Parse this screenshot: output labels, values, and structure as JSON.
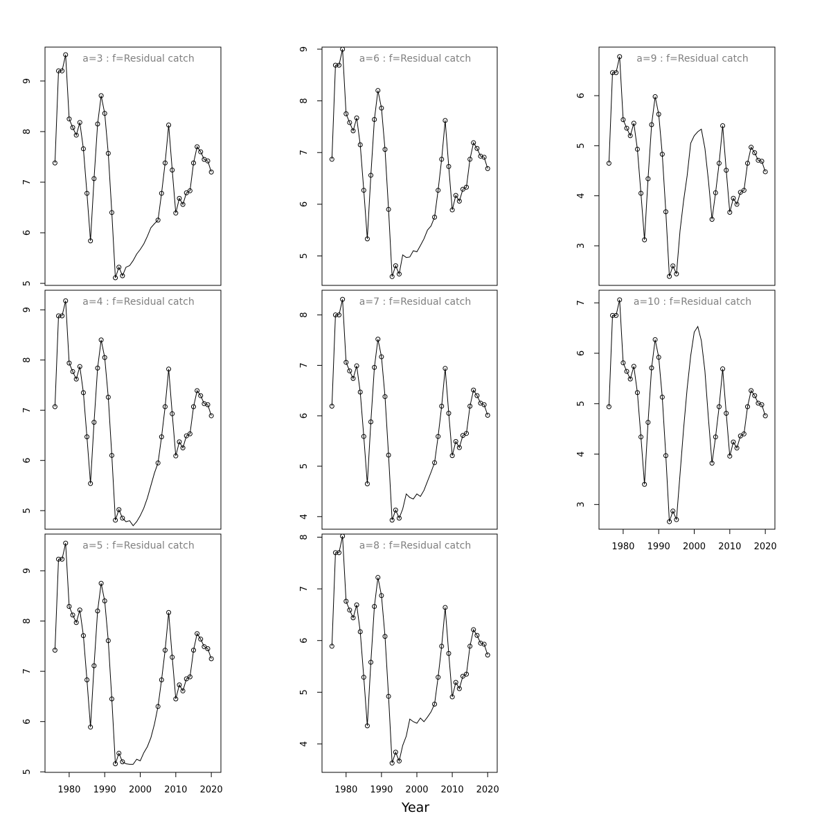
{
  "xlabel": "Year",
  "chart_data": [
    {
      "type": "line",
      "title": "a=3  :  f=Residual catch",
      "x": [
        1976,
        1977,
        1978,
        1979,
        1980,
        1981,
        1982,
        1983,
        1984,
        1985,
        1986,
        1987,
        1988,
        1989,
        1990,
        1991,
        1992,
        1993,
        1994,
        1995,
        1996,
        1997,
        1998,
        1999,
        2000,
        2001,
        2002,
        2003,
        2004,
        2005,
        2006,
        2007,
        2008,
        2009,
        2010,
        2011,
        2012,
        2013,
        2014,
        2015,
        2016,
        2017,
        2018,
        2019,
        2020
      ],
      "values": [
        7.38,
        9.2,
        9.2,
        9.52,
        8.25,
        8.08,
        7.93,
        8.18,
        7.66,
        6.78,
        5.84,
        7.07,
        8.15,
        8.71,
        8.36,
        7.57,
        6.4,
        5.11,
        5.32,
        5.15,
        5.32,
        5.35,
        5.45,
        5.58,
        5.67,
        5.78,
        5.93,
        6.1,
        6.18,
        6.25,
        6.78,
        7.38,
        8.13,
        7.24,
        6.39,
        6.68,
        6.56,
        6.79,
        6.83,
        7.38,
        7.7,
        7.6,
        7.45,
        7.42,
        7.2
      ],
      "markers": [
        true,
        true,
        true,
        true,
        true,
        true,
        true,
        true,
        true,
        true,
        true,
        true,
        true,
        true,
        true,
        true,
        true,
        true,
        true,
        true,
        false,
        false,
        false,
        false,
        false,
        false,
        false,
        false,
        false,
        true,
        true,
        true,
        true,
        true,
        true,
        true,
        true,
        true,
        true,
        true,
        true,
        true,
        true,
        true,
        true
      ],
      "color": "#000000",
      "xlim": [
        1973.2,
        2022.7
      ],
      "ylim": [
        4.96,
        9.67
      ],
      "yticks": [
        5,
        6,
        7,
        8,
        9
      ]
    },
    {
      "type": "line",
      "title": "a=4  :  f=Residual catch",
      "x": [
        1976,
        1977,
        1978,
        1979,
        1980,
        1981,
        1982,
        1983,
        1984,
        1985,
        1986,
        1987,
        1988,
        1989,
        1990,
        1991,
        1992,
        1993,
        1994,
        1995,
        1996,
        1997,
        1998,
        1999,
        2000,
        2001,
        2002,
        2003,
        2004,
        2005,
        2006,
        2007,
        2008,
        2009,
        2010,
        2011,
        2012,
        2013,
        2014,
        2015,
        2016,
        2017,
        2018,
        2019,
        2020
      ],
      "values": [
        7.07,
        8.88,
        8.88,
        9.18,
        7.94,
        7.77,
        7.62,
        7.87,
        7.35,
        6.47,
        5.54,
        6.76,
        7.84,
        8.4,
        8.05,
        7.26,
        6.1,
        4.81,
        5.02,
        4.85,
        4.78,
        4.8,
        4.7,
        4.78,
        4.9,
        5.05,
        5.25,
        5.5,
        5.75,
        5.95,
        6.47,
        7.07,
        7.82,
        6.93,
        6.09,
        6.37,
        6.25,
        6.49,
        6.53,
        7.07,
        7.39,
        7.29,
        7.13,
        7.11,
        6.89
      ],
      "markers": [
        true,
        true,
        true,
        true,
        true,
        true,
        true,
        true,
        true,
        true,
        true,
        true,
        true,
        true,
        true,
        true,
        true,
        true,
        true,
        true,
        false,
        false,
        false,
        false,
        false,
        false,
        false,
        false,
        false,
        true,
        true,
        true,
        true,
        true,
        true,
        true,
        true,
        true,
        true,
        true,
        true,
        true,
        true,
        true,
        true
      ],
      "color": "#000000",
      "xlim": [
        1973.2,
        2022.7
      ],
      "ylim": [
        4.63,
        9.39
      ],
      "yticks": [
        5,
        6,
        7,
        8,
        9
      ]
    },
    {
      "type": "line",
      "title": "a=5  :  f=Residual catch",
      "x": [
        1976,
        1977,
        1978,
        1979,
        1980,
        1981,
        1982,
        1983,
        1984,
        1985,
        1986,
        1987,
        1988,
        1989,
        1990,
        1991,
        1992,
        1993,
        1994,
        1995,
        1996,
        1997,
        1998,
        1999,
        2000,
        2001,
        2002,
        2003,
        2004,
        2005,
        2006,
        2007,
        2008,
        2009,
        2010,
        2011,
        2012,
        2013,
        2014,
        2015,
        2016,
        2017,
        2018,
        2019,
        2020
      ],
      "values": [
        7.42,
        9.23,
        9.23,
        9.55,
        8.29,
        8.12,
        7.97,
        8.22,
        7.71,
        6.83,
        5.89,
        7.11,
        8.2,
        8.75,
        8.4,
        7.61,
        6.45,
        5.16,
        5.37,
        5.2,
        5.16,
        5.15,
        5.15,
        5.25,
        5.22,
        5.38,
        5.5,
        5.68,
        5.95,
        6.3,
        6.83,
        7.42,
        8.17,
        7.28,
        6.45,
        6.73,
        6.61,
        6.85,
        6.89,
        7.42,
        7.75,
        7.64,
        7.49,
        7.45,
        7.25
      ],
      "markers": [
        true,
        true,
        true,
        true,
        true,
        true,
        true,
        true,
        true,
        true,
        true,
        true,
        true,
        true,
        true,
        true,
        true,
        true,
        true,
        true,
        false,
        false,
        false,
        false,
        false,
        false,
        false,
        false,
        false,
        true,
        true,
        true,
        true,
        true,
        true,
        true,
        true,
        true,
        true,
        true,
        true,
        true,
        true,
        true,
        true
      ],
      "color": "#000000",
      "xlim": [
        1973.2,
        2022.7
      ],
      "ylim": [
        4.99,
        9.73
      ],
      "yticks": [
        5,
        6,
        7,
        8,
        9
      ],
      "xticks": [
        1980,
        1990,
        2000,
        2010,
        2020
      ]
    },
    {
      "type": "line",
      "title": "a=6  :  f=Residual catch",
      "x": [
        1976,
        1977,
        1978,
        1979,
        1980,
        1981,
        1982,
        1983,
        1984,
        1985,
        1986,
        1987,
        1988,
        1989,
        1990,
        1991,
        1992,
        1993,
        1994,
        1995,
        1996,
        1997,
        1998,
        1999,
        2000,
        2001,
        2002,
        2003,
        2004,
        2005,
        2006,
        2007,
        2008,
        2009,
        2010,
        2011,
        2012,
        2013,
        2014,
        2015,
        2016,
        2017,
        2018,
        2019,
        2020
      ],
      "values": [
        6.87,
        8.69,
        8.69,
        9.0,
        7.75,
        7.58,
        7.42,
        7.67,
        7.15,
        6.27,
        5.33,
        6.56,
        7.64,
        8.2,
        7.86,
        7.06,
        5.9,
        4.6,
        4.81,
        4.65,
        5.02,
        4.97,
        4.98,
        5.1,
        5.08,
        5.2,
        5.33,
        5.5,
        5.58,
        5.75,
        6.27,
        6.87,
        7.62,
        6.73,
        5.89,
        6.17,
        6.06,
        6.29,
        6.33,
        6.87,
        7.19,
        7.08,
        6.93,
        6.91,
        6.69
      ],
      "markers": [
        true,
        true,
        true,
        true,
        true,
        true,
        true,
        true,
        true,
        true,
        true,
        true,
        true,
        true,
        true,
        true,
        true,
        true,
        true,
        true,
        false,
        false,
        false,
        false,
        false,
        false,
        false,
        false,
        false,
        true,
        true,
        true,
        true,
        true,
        true,
        true,
        true,
        true,
        true,
        true,
        true,
        true,
        true,
        true,
        true
      ],
      "color": "#000000",
      "xlim": [
        1973.2,
        2022.7
      ],
      "ylim": [
        4.43,
        9.04
      ],
      "yticks": [
        5,
        6,
        7,
        8,
        9
      ]
    },
    {
      "type": "line",
      "title": "a=7  :  f=Residual catch",
      "x": [
        1976,
        1977,
        1978,
        1979,
        1980,
        1981,
        1982,
        1983,
        1984,
        1985,
        1986,
        1987,
        1988,
        1989,
        1990,
        1991,
        1992,
        1993,
        1994,
        1995,
        1996,
        1997,
        1998,
        1999,
        2000,
        2001,
        2002,
        2003,
        2004,
        2005,
        2006,
        2007,
        2008,
        2009,
        2010,
        2011,
        2012,
        2013,
        2014,
        2015,
        2016,
        2017,
        2018,
        2019,
        2020
      ],
      "values": [
        6.19,
        8.0,
        8.0,
        8.31,
        7.06,
        6.89,
        6.74,
        6.99,
        6.47,
        5.59,
        4.65,
        5.88,
        6.96,
        7.52,
        7.17,
        6.38,
        5.22,
        3.93,
        4.13,
        3.97,
        4.15,
        4.45,
        4.38,
        4.35,
        4.45,
        4.4,
        4.52,
        4.7,
        4.88,
        5.07,
        5.59,
        6.19,
        6.94,
        6.05,
        5.21,
        5.49,
        5.37,
        5.61,
        5.65,
        6.19,
        6.51,
        6.4,
        6.25,
        6.22,
        6.01
      ],
      "markers": [
        true,
        true,
        true,
        true,
        true,
        true,
        true,
        true,
        true,
        true,
        true,
        true,
        true,
        true,
        true,
        true,
        true,
        true,
        true,
        true,
        false,
        false,
        false,
        false,
        false,
        false,
        false,
        false,
        false,
        true,
        true,
        true,
        true,
        true,
        true,
        true,
        true,
        true,
        true,
        true,
        true,
        true,
        true,
        true,
        true
      ],
      "color": "#000000",
      "xlim": [
        1973.2,
        2022.7
      ],
      "ylim": [
        3.75,
        8.49
      ],
      "yticks": [
        4,
        5,
        6,
        7,
        8
      ]
    },
    {
      "type": "line",
      "title": "a=8  :  f=Residual catch",
      "x": [
        1976,
        1977,
        1978,
        1979,
        1980,
        1981,
        1982,
        1983,
        1984,
        1985,
        1986,
        1987,
        1988,
        1989,
        1990,
        1991,
        1992,
        1993,
        1994,
        1995,
        1996,
        1997,
        1998,
        1999,
        2000,
        2001,
        2002,
        2003,
        2004,
        2005,
        2006,
        2007,
        2008,
        2009,
        2010,
        2011,
        2012,
        2013,
        2014,
        2015,
        2016,
        2017,
        2018,
        2019,
        2020
      ],
      "values": [
        5.89,
        7.7,
        7.7,
        8.02,
        6.76,
        6.59,
        6.44,
        6.69,
        6.17,
        5.29,
        4.35,
        5.58,
        6.66,
        7.22,
        6.87,
        6.08,
        4.92,
        3.63,
        3.84,
        3.67,
        3.97,
        4.15,
        4.48,
        4.43,
        4.4,
        4.5,
        4.43,
        4.52,
        4.62,
        4.77,
        5.29,
        5.89,
        6.64,
        5.75,
        4.91,
        5.19,
        5.07,
        5.31,
        5.35,
        5.89,
        6.21,
        6.1,
        5.95,
        5.93,
        5.72
      ],
      "markers": [
        true,
        true,
        true,
        true,
        true,
        true,
        true,
        true,
        true,
        true,
        true,
        true,
        true,
        true,
        true,
        true,
        true,
        true,
        true,
        true,
        false,
        false,
        false,
        false,
        false,
        false,
        false,
        false,
        false,
        true,
        true,
        true,
        true,
        true,
        true,
        true,
        true,
        true,
        true,
        true,
        true,
        true,
        true,
        true,
        true
      ],
      "color": "#000000",
      "xlim": [
        1973.2,
        2022.7
      ],
      "ylim": [
        3.45,
        8.06
      ],
      "yticks": [
        4,
        5,
        6,
        7,
        8
      ],
      "xticks": [
        1980,
        1990,
        2000,
        2010,
        2020
      ]
    },
    {
      "type": "line",
      "title": "a=9  :  f=Residual catch",
      "x": [
        1976,
        1977,
        1978,
        1979,
        1980,
        1981,
        1982,
        1983,
        1984,
        1985,
        1986,
        1987,
        1988,
        1989,
        1990,
        1991,
        1992,
        1993,
        1994,
        1995,
        1996,
        1997,
        1998,
        1999,
        2000,
        2001,
        2002,
        2003,
        2004,
        2005,
        2006,
        2007,
        2008,
        2009,
        2010,
        2011,
        2012,
        2013,
        2014,
        2015,
        2016,
        2017,
        2018,
        2019,
        2020
      ],
      "values": [
        4.65,
        6.46,
        6.46,
        6.78,
        5.52,
        5.35,
        5.2,
        5.45,
        4.93,
        4.05,
        3.12,
        4.34,
        5.42,
        5.98,
        5.63,
        4.83,
        3.68,
        2.39,
        2.6,
        2.44,
        3.3,
        3.9,
        4.4,
        5.05,
        5.2,
        5.28,
        5.33,
        4.95,
        4.3,
        3.53,
        4.06,
        4.65,
        5.4,
        4.51,
        3.67,
        3.95,
        3.83,
        4.07,
        4.11,
        4.65,
        4.97,
        4.86,
        4.71,
        4.69,
        4.48
      ],
      "markers": [
        true,
        true,
        true,
        true,
        true,
        true,
        true,
        true,
        true,
        true,
        true,
        true,
        true,
        true,
        true,
        true,
        true,
        true,
        true,
        true,
        false,
        false,
        false,
        false,
        false,
        false,
        false,
        false,
        false,
        true,
        true,
        true,
        true,
        true,
        true,
        true,
        true,
        true,
        true,
        true,
        true,
        true,
        true,
        true,
        true
      ],
      "color": "#000000",
      "xlim": [
        1973.2,
        2022.7
      ],
      "ylim": [
        2.21,
        6.97
      ],
      "yticks": [
        3,
        4,
        5,
        6
      ]
    },
    {
      "type": "line",
      "title": "a=10  :  f=Residual catch",
      "x": [
        1976,
        1977,
        1978,
        1979,
        1980,
        1981,
        1982,
        1983,
        1984,
        1985,
        1986,
        1987,
        1988,
        1989,
        1990,
        1991,
        1992,
        1993,
        1994,
        1995,
        1996,
        1997,
        1998,
        1999,
        2000,
        2001,
        2002,
        2003,
        2004,
        2005,
        2006,
        2007,
        2008,
        2009,
        2010,
        2011,
        2012,
        2013,
        2014,
        2015,
        2016,
        2017,
        2018,
        2019,
        2020
      ],
      "values": [
        4.94,
        6.75,
        6.75,
        7.06,
        5.81,
        5.64,
        5.49,
        5.74,
        5.22,
        4.34,
        3.4,
        4.63,
        5.71,
        6.27,
        5.92,
        5.13,
        3.97,
        2.66,
        2.87,
        2.7,
        3.6,
        4.5,
        5.3,
        5.95,
        6.42,
        6.53,
        6.25,
        5.65,
        4.7,
        3.82,
        4.34,
        4.94,
        5.69,
        4.81,
        3.96,
        4.24,
        4.12,
        4.36,
        4.4,
        4.94,
        5.26,
        5.16,
        5.01,
        4.98,
        4.76
      ],
      "markers": [
        true,
        true,
        true,
        true,
        true,
        true,
        true,
        true,
        true,
        true,
        true,
        true,
        true,
        true,
        true,
        true,
        true,
        true,
        true,
        true,
        false,
        false,
        false,
        false,
        false,
        false,
        false,
        false,
        false,
        true,
        true,
        true,
        true,
        true,
        true,
        true,
        true,
        true,
        true,
        true,
        true,
        true,
        true,
        true,
        true
      ],
      "color": "#000000",
      "xlim": [
        1973.2,
        2022.7
      ],
      "ylim": [
        2.51,
        7.25
      ],
      "yticks": [
        3,
        4,
        5,
        6,
        7
      ],
      "xticks": [
        1980,
        1990,
        2000,
        2010,
        2020
      ]
    }
  ]
}
